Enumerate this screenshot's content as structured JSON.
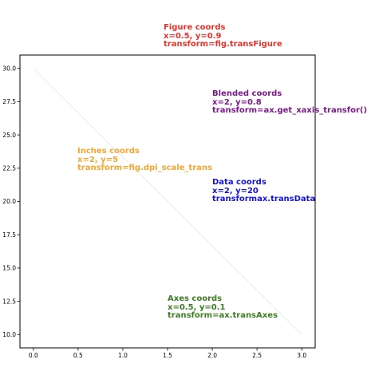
{
  "chart_data": {
    "type": "line",
    "title": "",
    "xlabel": "",
    "ylabel": "",
    "x": [
      0,
      3
    ],
    "y": [
      30,
      10
    ],
    "xlim": [
      -0.15,
      3.15
    ],
    "ylim": [
      9.0,
      31.0
    ],
    "x_ticks": [
      "0.0",
      "0.5",
      "1.0",
      "1.5",
      "2.0",
      "2.5",
      "3.0"
    ],
    "y_ticks": [
      "10.0",
      "12.5",
      "15.0",
      "17.5",
      "20.0",
      "22.5",
      "25.0",
      "27.5",
      "30.0"
    ],
    "grid": false,
    "line_color": "#e3edf2",
    "annotations": [
      {
        "id": "figure",
        "color": "#e8322a",
        "lines": [
          "Figure coords",
          "x=0.5, y=0.9",
          "transform=fig.transFigure"
        ]
      },
      {
        "id": "blended",
        "color": "#7a1a8a",
        "lines": [
          "Blended coords",
          "x=2, y=0.8",
          "transform=ax.get_xaxis_transfor()"
        ]
      },
      {
        "id": "inches",
        "color": "#f5a62e",
        "lines": [
          "Inches coords",
          "x=2, y=5",
          "transform=fig.dpi_scale_trans"
        ]
      },
      {
        "id": "data",
        "color": "#1414d6",
        "lines": [
          "Data coords",
          "x=2, y=20",
          "transformax.transData"
        ]
      },
      {
        "id": "axes",
        "color": "#3a7d22",
        "lines": [
          "Axes coords",
          "x=0.5, y=0.1",
          "transform=ax.transAxes"
        ]
      }
    ]
  }
}
